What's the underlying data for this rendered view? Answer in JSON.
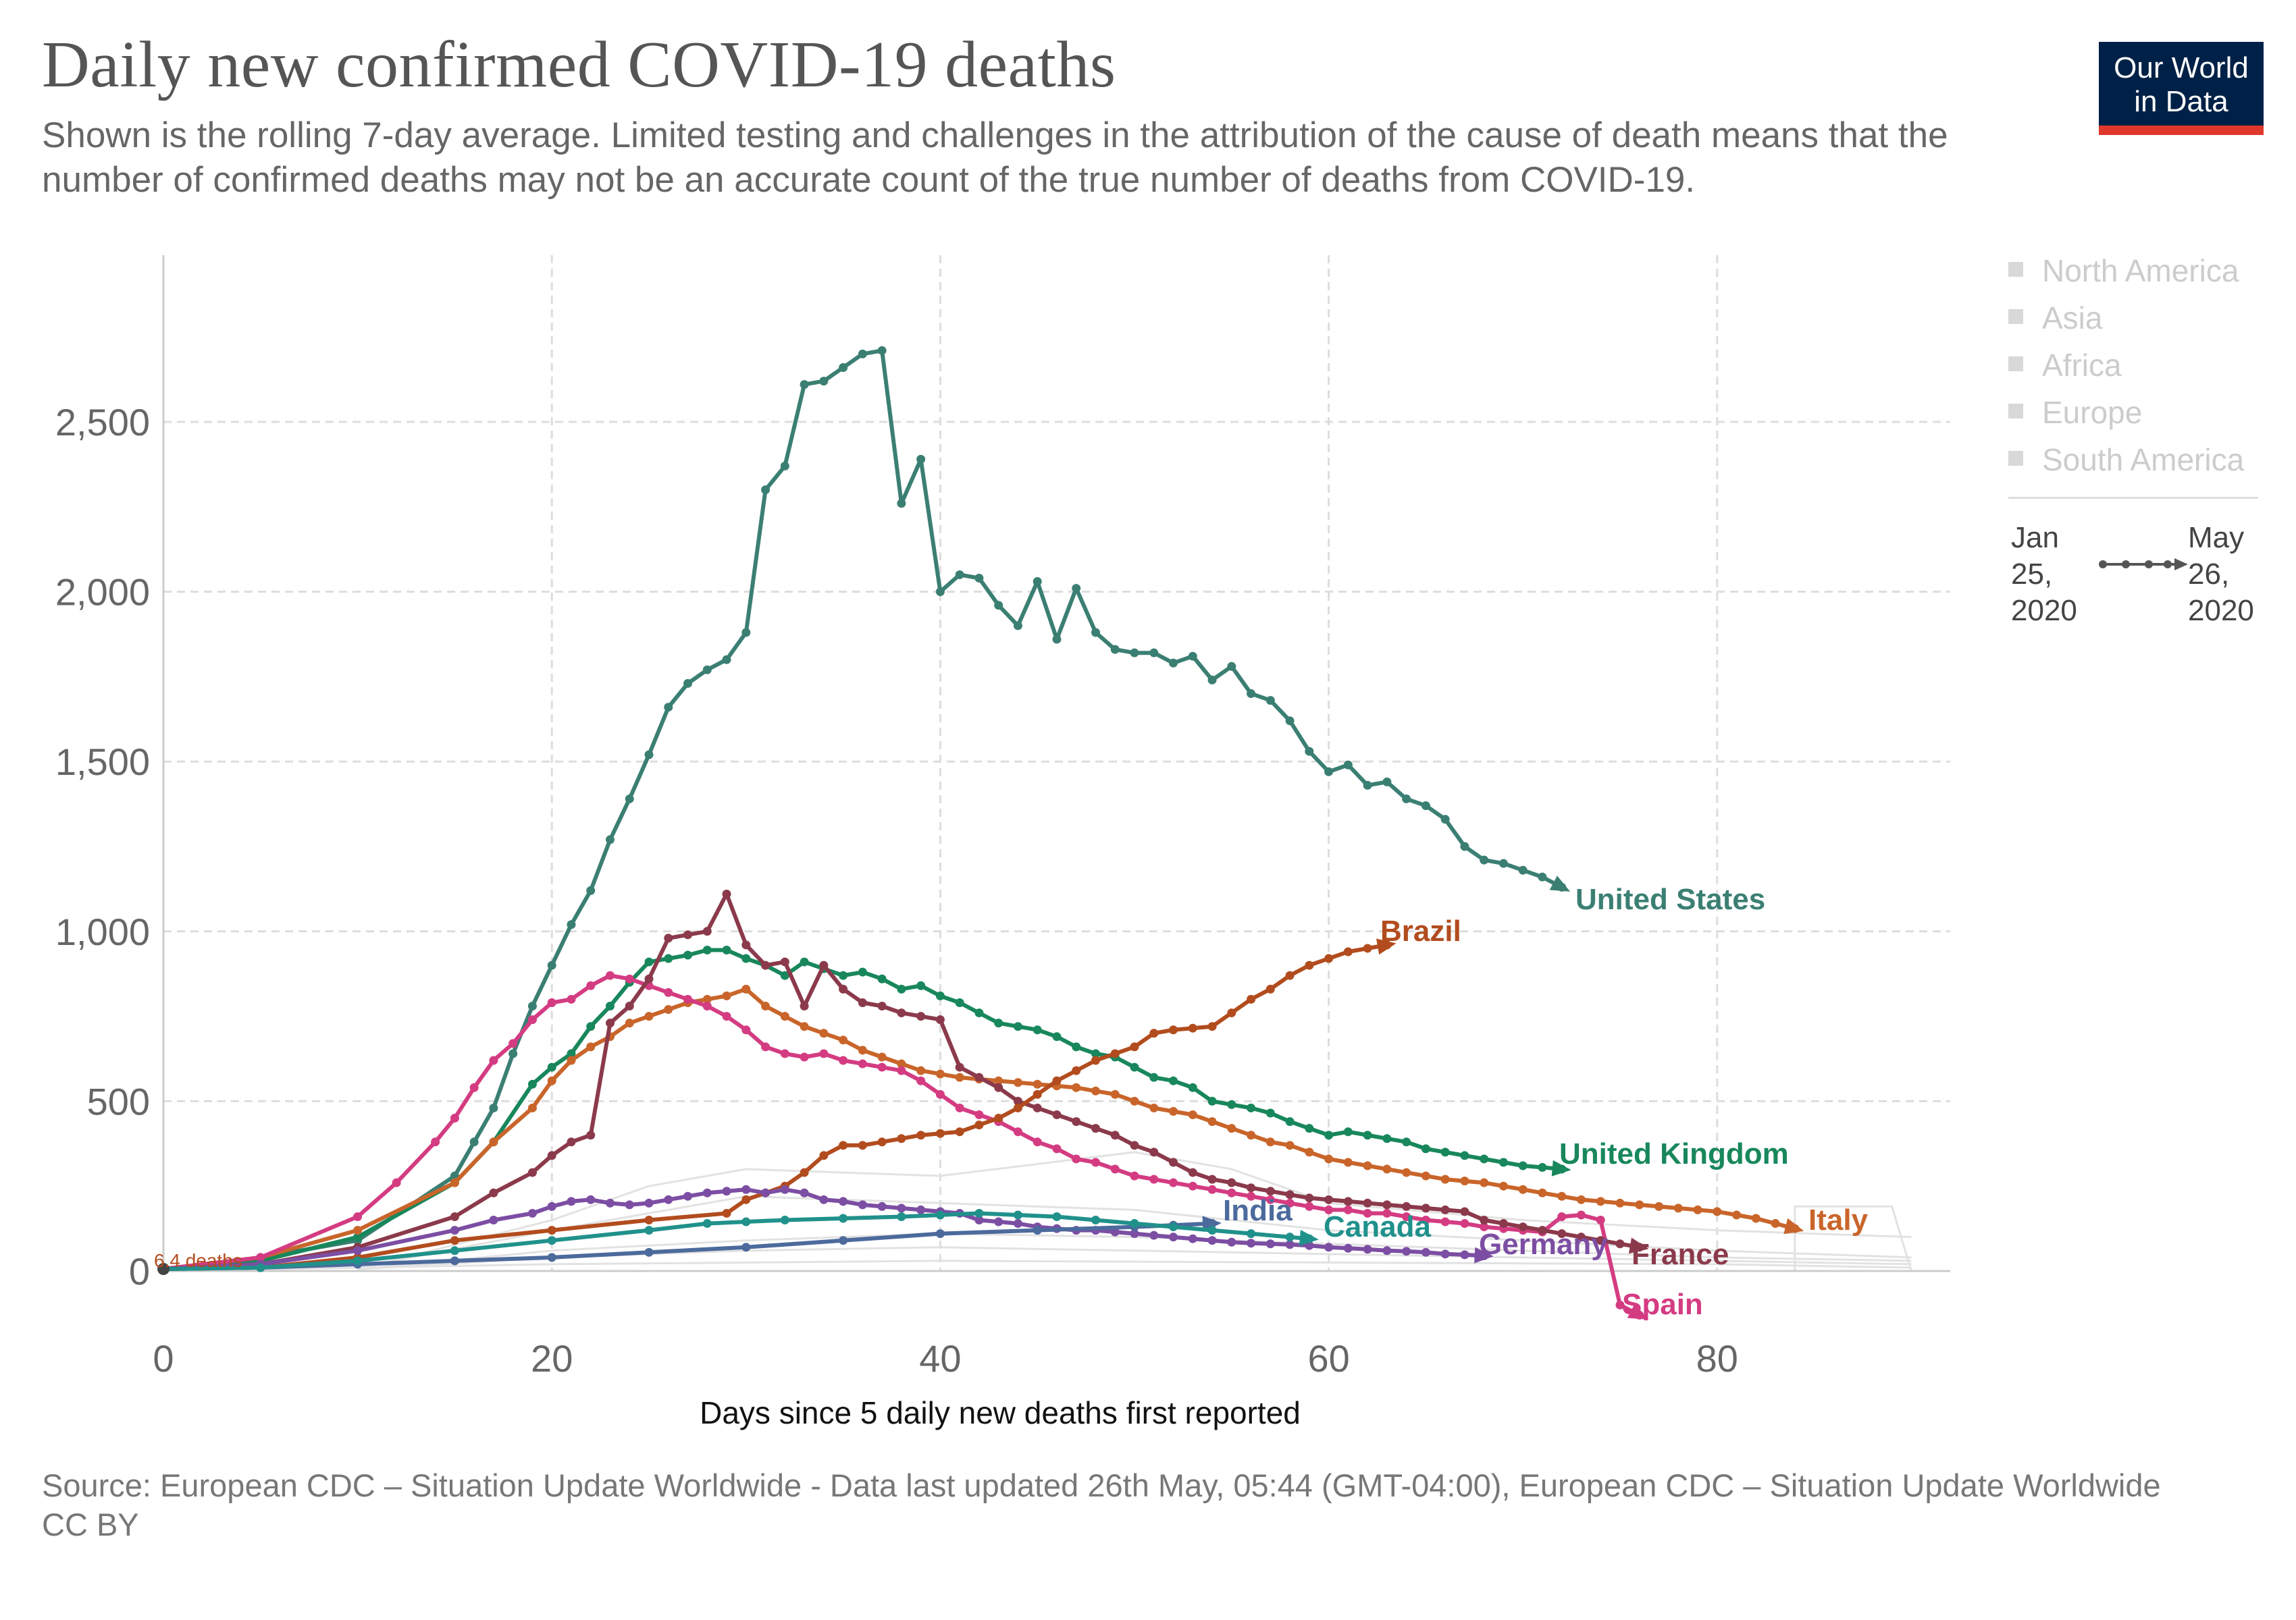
{
  "title": "Daily new confirmed COVID-19 deaths",
  "subtitle": "Shown is the rolling 7-day average. Limited testing and challenges in the attribution of the cause of death means that the number of confirmed deaths may not be an accurate count of the true number of deaths from COVID-19.",
  "logo": {
    "line1": "Our World",
    "line2": "in Data"
  },
  "legend": {
    "items": [
      "North America",
      "Asia",
      "Africa",
      "Europe",
      "South America"
    ]
  },
  "timeline": {
    "start": [
      "Jan",
      "25,",
      "2020"
    ],
    "end": [
      "May",
      "26,",
      "2020"
    ]
  },
  "footer": {
    "source": "Source: European CDC – Situation Update Worldwide - Data last updated 26th May, 05:44 (GMT-04:00), European CDC – Situation Update Worldwide",
    "license": "CC BY"
  },
  "chart_data": {
    "type": "line",
    "xlabel": "Days since 5 daily new deaths first reported",
    "ylabel": "",
    "xlim": [
      0,
      92
    ],
    "ylim": [
      -150,
      3000
    ],
    "xticks": [
      0,
      20,
      40,
      60,
      80
    ],
    "yticks": [
      0,
      500,
      1000,
      1500,
      2000,
      2500
    ],
    "ytick_labels": [
      "0",
      "500",
      "1,000",
      "1,500",
      "2,000",
      "2,500"
    ],
    "grid": true,
    "start_annotation": "6.4 deaths",
    "series": [
      {
        "name": "United States",
        "color": "#3b7f73",
        "x": [
          0,
          5,
          10,
          15,
          16,
          17,
          18,
          19,
          20,
          21,
          22,
          23,
          24,
          25,
          26,
          27,
          28,
          29,
          30,
          31,
          32,
          33,
          34,
          35,
          36,
          37,
          38,
          39,
          40,
          41,
          42,
          43,
          44,
          45,
          46,
          47,
          48,
          49,
          50,
          51,
          52,
          53,
          54,
          55,
          56,
          57,
          58,
          59,
          60,
          61,
          62,
          63,
          64,
          65,
          66,
          67,
          68,
          69,
          70,
          71,
          72
        ],
        "y": [
          6,
          40,
          90,
          280,
          380,
          480,
          640,
          780,
          900,
          1020,
          1120,
          1270,
          1390,
          1520,
          1660,
          1730,
          1770,
          1800,
          1880,
          2300,
          2370,
          2610,
          2620,
          2660,
          2700,
          2710,
          2260,
          2390,
          2000,
          2050,
          2040,
          1960,
          1900,
          2030,
          1860,
          2010,
          1880,
          1830,
          1820,
          1820,
          1790,
          1810,
          1740,
          1780,
          1700,
          1680,
          1620,
          1530,
          1470,
          1490,
          1430,
          1440,
          1390,
          1370,
          1330,
          1250,
          1210,
          1200,
          1180,
          1160,
          1130
        ]
      },
      {
        "name": "United Kingdom",
        "color": "#18875c",
        "x": [
          0,
          5,
          10,
          15,
          17,
          19,
          20,
          21,
          22,
          23,
          24,
          25,
          26,
          27,
          28,
          29,
          30,
          31,
          32,
          33,
          34,
          35,
          36,
          37,
          38,
          39,
          40,
          41,
          42,
          43,
          44,
          45,
          46,
          47,
          48,
          49,
          50,
          51,
          52,
          53,
          54,
          55,
          56,
          57,
          58,
          59,
          60,
          61,
          62,
          63,
          64,
          65,
          66,
          67,
          68,
          69,
          70,
          71,
          72
        ],
        "y": [
          6,
          30,
          100,
          260,
          380,
          550,
          600,
          640,
          720,
          780,
          850,
          910,
          920,
          930,
          945,
          945,
          920,
          900,
          870,
          910,
          890,
          870,
          880,
          860,
          830,
          840,
          810,
          790,
          760,
          730,
          720,
          710,
          690,
          660,
          640,
          630,
          600,
          570,
          560,
          540,
          500,
          490,
          480,
          465,
          440,
          420,
          400,
          410,
          400,
          390,
          380,
          360,
          350,
          340,
          330,
          320,
          310,
          305,
          300
        ]
      },
      {
        "name": "Italy",
        "color": "#c9652a",
        "x": [
          0,
          5,
          10,
          15,
          17,
          19,
          20,
          21,
          22,
          23,
          24,
          25,
          26,
          27,
          28,
          29,
          30,
          31,
          32,
          33,
          34,
          35,
          36,
          37,
          38,
          39,
          40,
          41,
          42,
          43,
          44,
          45,
          46,
          47,
          48,
          49,
          50,
          51,
          52,
          53,
          54,
          55,
          56,
          57,
          58,
          59,
          60,
          61,
          62,
          63,
          64,
          65,
          66,
          67,
          68,
          69,
          70,
          71,
          72,
          73,
          74,
          75,
          76,
          77,
          78,
          79,
          80,
          81,
          82,
          83,
          84
        ],
        "y": [
          6,
          40,
          120,
          260,
          380,
          480,
          560,
          620,
          660,
          690,
          730,
          750,
          770,
          790,
          800,
          810,
          830,
          780,
          750,
          720,
          700,
          680,
          650,
          630,
          610,
          590,
          580,
          570,
          565,
          560,
          555,
          550,
          545,
          540,
          530,
          520,
          500,
          480,
          470,
          460,
          440,
          420,
          400,
          380,
          370,
          350,
          330,
          320,
          310,
          300,
          290,
          280,
          270,
          265,
          260,
          250,
          240,
          230,
          220,
          210,
          205,
          200,
          195,
          190,
          185,
          180,
          175,
          165,
          155,
          140,
          125
        ]
      },
      {
        "name": "Spain",
        "color": "#d43c82",
        "x": [
          0,
          5,
          10,
          12,
          14,
          15,
          16,
          17,
          18,
          19,
          20,
          21,
          22,
          23,
          24,
          25,
          26,
          27,
          28,
          29,
          30,
          31,
          32,
          33,
          34,
          35,
          36,
          37,
          38,
          39,
          40,
          41,
          42,
          43,
          44,
          45,
          46,
          47,
          48,
          49,
          50,
          51,
          52,
          53,
          54,
          55,
          56,
          57,
          58,
          59,
          60,
          61,
          62,
          63,
          64,
          65,
          66,
          67,
          68,
          69,
          70,
          71,
          72,
          73,
          74,
          75,
          76
        ],
        "y": [
          6,
          40,
          160,
          260,
          380,
          450,
          540,
          620,
          670,
          740,
          790,
          800,
          840,
          870,
          860,
          840,
          820,
          800,
          780,
          750,
          710,
          660,
          640,
          630,
          640,
          620,
          610,
          600,
          590,
          560,
          520,
          480,
          460,
          440,
          410,
          380,
          360,
          330,
          320,
          300,
          280,
          270,
          260,
          250,
          240,
          230,
          220,
          210,
          200,
          190,
          180,
          180,
          170,
          170,
          160,
          150,
          145,
          140,
          130,
          125,
          120,
          115,
          160,
          165,
          150,
          -100,
          -130
        ]
      },
      {
        "name": "France",
        "color": "#8b3a4b",
        "x": [
          0,
          5,
          10,
          15,
          17,
          19,
          20,
          21,
          22,
          23,
          24,
          25,
          26,
          27,
          28,
          29,
          30,
          31,
          32,
          33,
          34,
          35,
          36,
          37,
          38,
          39,
          40,
          41,
          42,
          43,
          44,
          45,
          46,
          47,
          48,
          49,
          50,
          51,
          52,
          53,
          54,
          55,
          56,
          57,
          58,
          59,
          60,
          61,
          62,
          63,
          64,
          65,
          66,
          67,
          68,
          69,
          70,
          71,
          72,
          73,
          74,
          75,
          76
        ],
        "y": [
          6,
          20,
          70,
          160,
          230,
          290,
          340,
          380,
          400,
          730,
          780,
          860,
          980,
          990,
          1000,
          1110,
          960,
          900,
          910,
          780,
          900,
          830,
          790,
          780,
          760,
          750,
          740,
          600,
          570,
          540,
          500,
          480,
          460,
          440,
          420,
          400,
          370,
          350,
          320,
          290,
          270,
          260,
          245,
          235,
          225,
          215,
          210,
          205,
          200,
          195,
          190,
          185,
          180,
          175,
          150,
          140,
          130,
          120,
          110,
          100,
          90,
          80,
          70
        ]
      },
      {
        "name": "Brazil",
        "color": "#b24c1e",
        "x": [
          0,
          5,
          10,
          15,
          20,
          25,
          29,
          30,
          31,
          32,
          33,
          34,
          35,
          36,
          37,
          38,
          39,
          40,
          41,
          42,
          43,
          44,
          45,
          46,
          47,
          48,
          49,
          50,
          51,
          52,
          53,
          54,
          55,
          56,
          57,
          58,
          59,
          60,
          61,
          62,
          63
        ],
        "y": [
          6,
          10,
          40,
          90,
          120,
          150,
          170,
          210,
          230,
          250,
          290,
          340,
          370,
          370,
          380,
          390,
          400,
          405,
          410,
          430,
          450,
          480,
          520,
          560,
          590,
          620,
          640,
          660,
          700,
          710,
          715,
          720,
          760,
          800,
          830,
          870,
          900,
          920,
          940,
          950,
          960
        ]
      },
      {
        "name": "Germany",
        "color": "#7c4ea3",
        "x": [
          0,
          5,
          10,
          15,
          17,
          19,
          20,
          21,
          22,
          23,
          24,
          25,
          26,
          27,
          28,
          29,
          30,
          31,
          32,
          33,
          34,
          35,
          36,
          37,
          38,
          39,
          40,
          41,
          42,
          43,
          44,
          45,
          46,
          47,
          48,
          49,
          50,
          51,
          52,
          53,
          54,
          55,
          56,
          57,
          58,
          59,
          60,
          61,
          62,
          63,
          64,
          65,
          66,
          67,
          68
        ],
        "y": [
          6,
          20,
          60,
          120,
          150,
          170,
          190,
          205,
          210,
          200,
          195,
          200,
          210,
          220,
          230,
          235,
          240,
          230,
          240,
          230,
          210,
          205,
          195,
          190,
          185,
          180,
          175,
          170,
          150,
          145,
          140,
          130,
          125,
          120,
          120,
          115,
          110,
          105,
          100,
          95,
          90,
          85,
          82,
          80,
          78,
          75,
          70,
          67,
          64,
          60,
          58,
          55,
          50,
          48,
          45
        ]
      },
      {
        "name": "India",
        "color": "#4c6a9c",
        "x": [
          0,
          5,
          10,
          15,
          20,
          25,
          30,
          35,
          40,
          45,
          50,
          52,
          54
        ],
        "y": [
          6,
          10,
          20,
          30,
          40,
          55,
          70,
          90,
          110,
          120,
          130,
          135,
          140
        ]
      },
      {
        "name": "Canada",
        "color": "#20918b",
        "x": [
          0,
          5,
          10,
          15,
          20,
          25,
          28,
          30,
          32,
          35,
          38,
          40,
          42,
          44,
          46,
          48,
          50,
          52,
          54,
          56,
          58,
          59
        ],
        "y": [
          6,
          10,
          30,
          60,
          90,
          120,
          140,
          145,
          150,
          155,
          160,
          165,
          170,
          165,
          160,
          150,
          140,
          130,
          120,
          110,
          100,
          95
        ]
      }
    ],
    "labels": [
      {
        "text": "United States",
        "series": "United States"
      },
      {
        "text": "Brazil",
        "series": "Brazil"
      },
      {
        "text": "United Kingdom",
        "series": "United Kingdom"
      },
      {
        "text": "Italy",
        "series": "Italy"
      },
      {
        "text": "India",
        "series": "India"
      },
      {
        "text": "Canada",
        "series": "Canada"
      },
      {
        "text": "Germany",
        "series": "Germany"
      },
      {
        "text": "France",
        "series": "France"
      },
      {
        "text": "Spain",
        "series": "Spain"
      }
    ]
  }
}
